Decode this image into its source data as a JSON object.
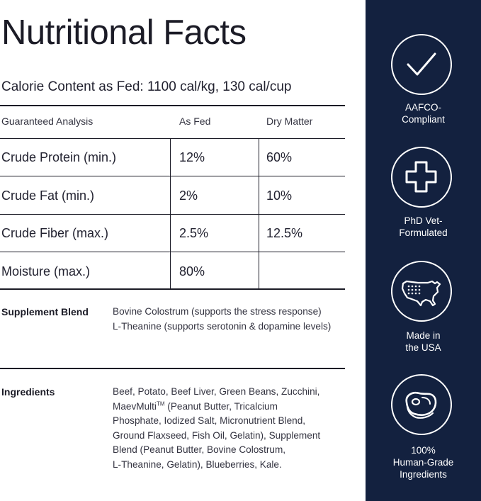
{
  "title": "Nutritional Facts",
  "calorie_content": "Calorie Content as Fed: 1100 cal/kg, 130 cal/cup",
  "analysis": {
    "headers": [
      "Guaranteed Analysis",
      "As Fed",
      "Dry Matter"
    ],
    "rows": [
      {
        "name": "Crude Protein (min.)",
        "as_fed": "12%",
        "dry_matter": "60%"
      },
      {
        "name": "Crude Fat (min.)",
        "as_fed": "2%",
        "dry_matter": "10%"
      },
      {
        "name": "Crude Fiber (max.)",
        "as_fed": "2.5%",
        "dry_matter": "12.5%"
      },
      {
        "name": "Moisture (max.)",
        "as_fed": "80%",
        "dry_matter": ""
      }
    ]
  },
  "supplement": {
    "label": "Supplement Blend",
    "lines": [
      "Bovine Colostrum (supports the stress response)",
      "L-Theanine (supports serotonin & dopamine levels)"
    ]
  },
  "ingredients": {
    "label": "Ingredients",
    "line1": "Beef, Potato, Beef Liver, Green Beans, Zucchini,",
    "line2_pre": "MaevMulti",
    "line2_sup": "TM",
    "line2_post": " (Peanut Butter, Tricalcium",
    "lines_rest": [
      "Phosphate, Iodized Salt, Micronutrient Blend,",
      "Ground Flaxseed, Fish Oil, Gelatin), Supplement",
      "Blend (Peanut Butter, Bovine Colostrum,",
      "L-Theanine, Gelatin), Blueberries, Kale."
    ]
  },
  "badges": [
    {
      "icon": "checkmark-icon",
      "lines": [
        "AAFCO-",
        "Compliant"
      ]
    },
    {
      "icon": "medical-cross-icon",
      "lines": [
        "PhD Vet-",
        "Formulated"
      ]
    },
    {
      "icon": "usa-map-icon",
      "lines": [
        "Made in",
        "the USA"
      ]
    },
    {
      "icon": "steak-icon",
      "lines": [
        "100%",
        "Human-Grade",
        "Ingredients"
      ]
    }
  ],
  "colors": {
    "sidebar": "#13213f",
    "text": "#1f1f2a",
    "badge_text": "#ffffff"
  }
}
